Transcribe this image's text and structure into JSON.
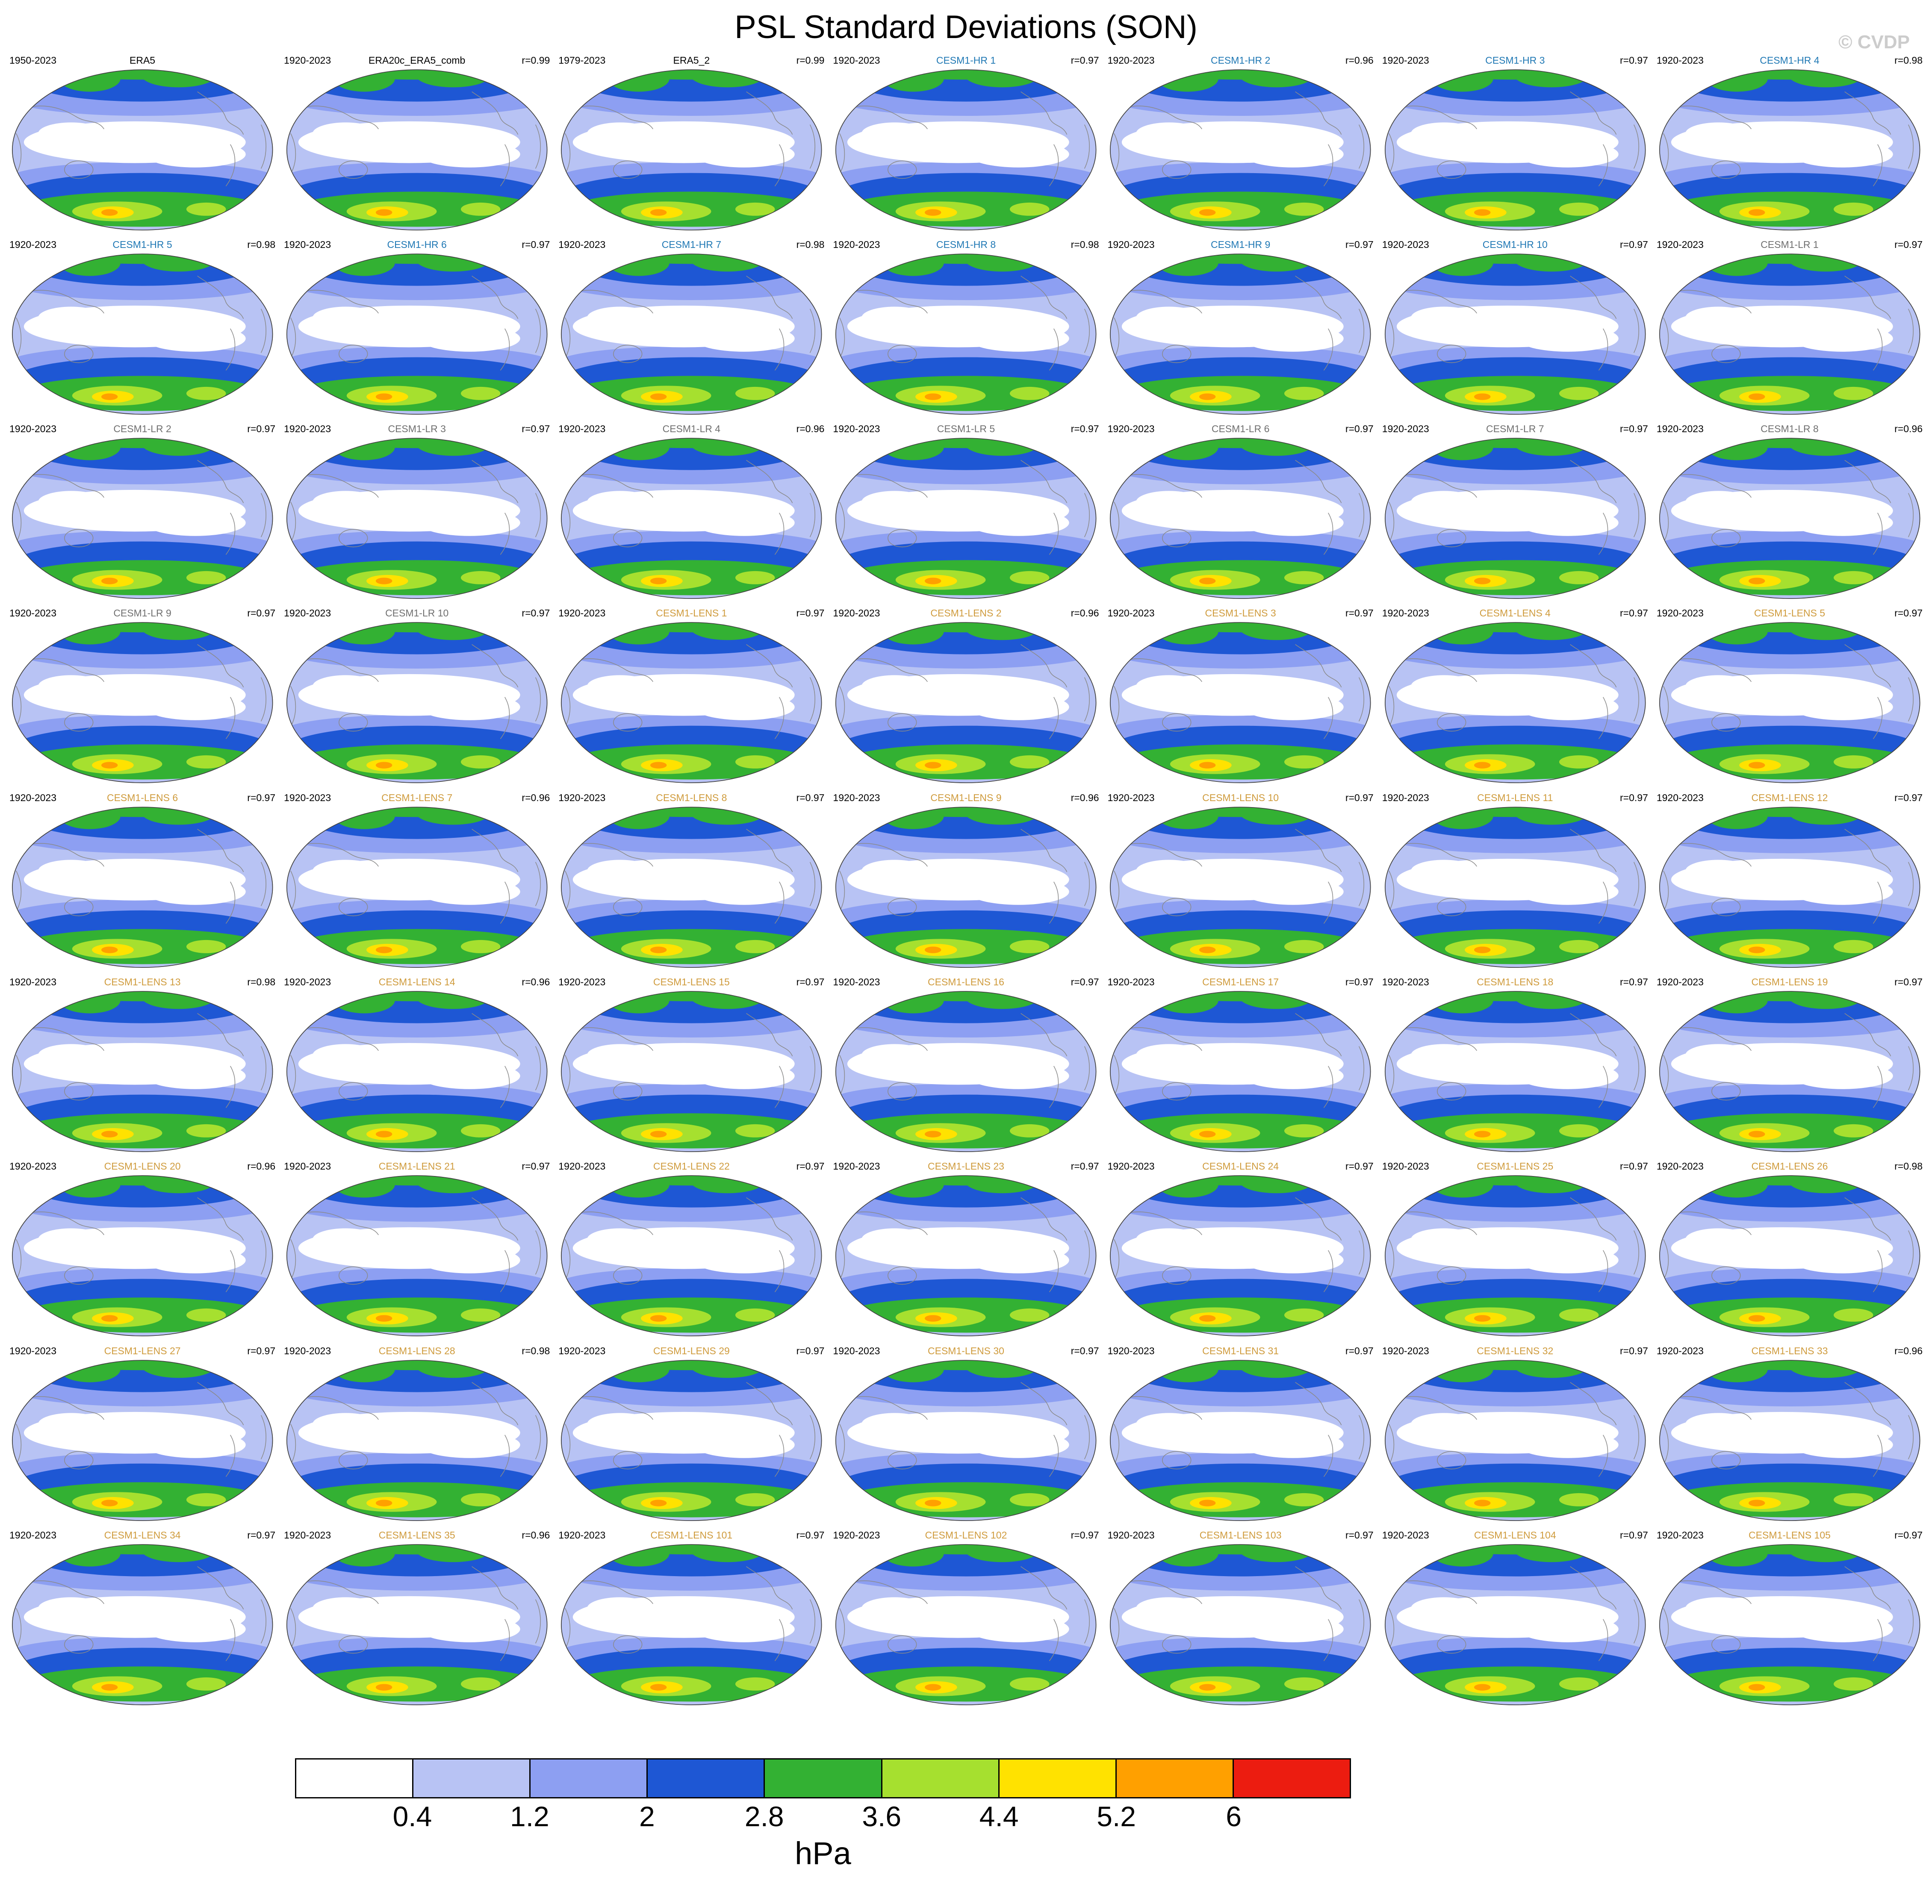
{
  "title": "PSL Standard Deviations (SON)",
  "watermark": "© CVDP",
  "colorbar": {
    "unit": "hPa",
    "levels": [
      "0.4",
      "1.2",
      "2",
      "2.8",
      "3.6",
      "4.4",
      "5.2",
      "6"
    ],
    "colors": [
      "#ffffff",
      "#b8c3f4",
      "#8d9ff2",
      "#1e57d4",
      "#33b133",
      "#a6e02f",
      "#ffe200",
      "#ffa000",
      "#ec1c10"
    ]
  },
  "group_colors": {
    "obs": "#000000",
    "hr": "#1f78b4",
    "lr": "#6f6f6f",
    "lens": "#cf9b3c"
  },
  "chart_data": {
    "type": "heatmap",
    "title": "PSL Standard Deviations (SON)",
    "subtitle": "Grid of global filled-contour maps of sea level pressure standard deviation for September-October-November",
    "unit": "hPa",
    "contour_levels": [
      0.4,
      1.2,
      2,
      2.8,
      3.6,
      4.4,
      5.2,
      6
    ],
    "legend_position": "bottom",
    "grid": {
      "rows": 9,
      "columns": 7
    },
    "panels": [
      {
        "name": "ERA5",
        "years": "1950-2023",
        "r": null,
        "group": "obs"
      },
      {
        "name": "ERA20c_ERA5_comb",
        "years": "1920-2023",
        "r": "0.99",
        "group": "obs"
      },
      {
        "name": "ERA5_2",
        "years": "1979-2023",
        "r": "0.99",
        "group": "obs"
      },
      {
        "name": "CESM1-HR 1",
        "years": "1920-2023",
        "r": "0.97",
        "group": "hr"
      },
      {
        "name": "CESM1-HR 2",
        "years": "1920-2023",
        "r": "0.96",
        "group": "hr"
      },
      {
        "name": "CESM1-HR 3",
        "years": "1920-2023",
        "r": "0.97",
        "group": "hr"
      },
      {
        "name": "CESM1-HR 4",
        "years": "1920-2023",
        "r": "0.98",
        "group": "hr"
      },
      {
        "name": "CESM1-HR 5",
        "years": "1920-2023",
        "r": "0.98",
        "group": "hr"
      },
      {
        "name": "CESM1-HR 6",
        "years": "1920-2023",
        "r": "0.97",
        "group": "hr"
      },
      {
        "name": "CESM1-HR 7",
        "years": "1920-2023",
        "r": "0.98",
        "group": "hr"
      },
      {
        "name": "CESM1-HR 8",
        "years": "1920-2023",
        "r": "0.98",
        "group": "hr"
      },
      {
        "name": "CESM1-HR 9",
        "years": "1920-2023",
        "r": "0.97",
        "group": "hr"
      },
      {
        "name": "CESM1-HR 10",
        "years": "1920-2023",
        "r": "0.97",
        "group": "hr"
      },
      {
        "name": "CESM1-LR 1",
        "years": "1920-2023",
        "r": "0.97",
        "group": "lr"
      },
      {
        "name": "CESM1-LR 2",
        "years": "1920-2023",
        "r": "0.97",
        "group": "lr"
      },
      {
        "name": "CESM1-LR 3",
        "years": "1920-2023",
        "r": "0.97",
        "group": "lr"
      },
      {
        "name": "CESM1-LR 4",
        "years": "1920-2023",
        "r": "0.96",
        "group": "lr"
      },
      {
        "name": "CESM1-LR 5",
        "years": "1920-2023",
        "r": "0.97",
        "group": "lr"
      },
      {
        "name": "CESM1-LR 6",
        "years": "1920-2023",
        "r": "0.97",
        "group": "lr"
      },
      {
        "name": "CESM1-LR 7",
        "years": "1920-2023",
        "r": "0.97",
        "group": "lr"
      },
      {
        "name": "CESM1-LR 8",
        "years": "1920-2023",
        "r": "0.96",
        "group": "lr"
      },
      {
        "name": "CESM1-LR 9",
        "years": "1920-2023",
        "r": "0.97",
        "group": "lr"
      },
      {
        "name": "CESM1-LR 10",
        "years": "1920-2023",
        "r": "0.97",
        "group": "lr"
      },
      {
        "name": "CESM1-LENS 1",
        "years": "1920-2023",
        "r": "0.97",
        "group": "lens"
      },
      {
        "name": "CESM1-LENS 2",
        "years": "1920-2023",
        "r": "0.96",
        "group": "lens"
      },
      {
        "name": "CESM1-LENS 3",
        "years": "1920-2023",
        "r": "0.97",
        "group": "lens"
      },
      {
        "name": "CESM1-LENS 4",
        "years": "1920-2023",
        "r": "0.97",
        "group": "lens"
      },
      {
        "name": "CESM1-LENS 5",
        "years": "1920-2023",
        "r": "0.97",
        "group": "lens"
      },
      {
        "name": "CESM1-LENS 6",
        "years": "1920-2023",
        "r": "0.97",
        "group": "lens"
      },
      {
        "name": "CESM1-LENS 7",
        "years": "1920-2023",
        "r": "0.96",
        "group": "lens"
      },
      {
        "name": "CESM1-LENS 8",
        "years": "1920-2023",
        "r": "0.97",
        "group": "lens"
      },
      {
        "name": "CESM1-LENS 9",
        "years": "1920-2023",
        "r": "0.96",
        "group": "lens"
      },
      {
        "name": "CESM1-LENS 10",
        "years": "1920-2023",
        "r": "0.97",
        "group": "lens"
      },
      {
        "name": "CESM1-LENS 11",
        "years": "1920-2023",
        "r": "0.97",
        "group": "lens"
      },
      {
        "name": "CESM1-LENS 12",
        "years": "1920-2023",
        "r": "0.97",
        "group": "lens"
      },
      {
        "name": "CESM1-LENS 13",
        "years": "1920-2023",
        "r": "0.98",
        "group": "lens"
      },
      {
        "name": "CESM1-LENS 14",
        "years": "1920-2023",
        "r": "0.96",
        "group": "lens"
      },
      {
        "name": "CESM1-LENS 15",
        "years": "1920-2023",
        "r": "0.97",
        "group": "lens"
      },
      {
        "name": "CESM1-LENS 16",
        "years": "1920-2023",
        "r": "0.97",
        "group": "lens"
      },
      {
        "name": "CESM1-LENS 17",
        "years": "1920-2023",
        "r": "0.97",
        "group": "lens"
      },
      {
        "name": "CESM1-LENS 18",
        "years": "1920-2023",
        "r": "0.97",
        "group": "lens"
      },
      {
        "name": "CESM1-LENS 19",
        "years": "1920-2023",
        "r": "0.97",
        "group": "lens"
      },
      {
        "name": "CESM1-LENS 20",
        "years": "1920-2023",
        "r": "0.96",
        "group": "lens"
      },
      {
        "name": "CESM1-LENS 21",
        "years": "1920-2023",
        "r": "0.97",
        "group": "lens"
      },
      {
        "name": "CESM1-LENS 22",
        "years": "1920-2023",
        "r": "0.97",
        "group": "lens"
      },
      {
        "name": "CESM1-LENS 23",
        "years": "1920-2023",
        "r": "0.97",
        "group": "lens"
      },
      {
        "name": "CESM1-LENS 24",
        "years": "1920-2023",
        "r": "0.97",
        "group": "lens"
      },
      {
        "name": "CESM1-LENS 25",
        "years": "1920-2023",
        "r": "0.97",
        "group": "lens"
      },
      {
        "name": "CESM1-LENS 26",
        "years": "1920-2023",
        "r": "0.98",
        "group": "lens"
      },
      {
        "name": "CESM1-LENS 27",
        "years": "1920-2023",
        "r": "0.97",
        "group": "lens"
      },
      {
        "name": "CESM1-LENS 28",
        "years": "1920-2023",
        "r": "0.98",
        "group": "lens"
      },
      {
        "name": "CESM1-LENS 29",
        "years": "1920-2023",
        "r": "0.97",
        "group": "lens"
      },
      {
        "name": "CESM1-LENS 30",
        "years": "1920-2023",
        "r": "0.97",
        "group": "lens"
      },
      {
        "name": "CESM1-LENS 31",
        "years": "1920-2023",
        "r": "0.97",
        "group": "lens"
      },
      {
        "name": "CESM1-LENS 32",
        "years": "1920-2023",
        "r": "0.97",
        "group": "lens"
      },
      {
        "name": "CESM1-LENS 33",
        "years": "1920-2023",
        "r": "0.96",
        "group": "lens"
      },
      {
        "name": "CESM1-LENS 34",
        "years": "1920-2023",
        "r": "0.97",
        "group": "lens"
      },
      {
        "name": "CESM1-LENS 35",
        "years": "1920-2023",
        "r": "0.96",
        "group": "lens"
      },
      {
        "name": "CESM1-LENS 101",
        "years": "1920-2023",
        "r": "0.97",
        "group": "lens"
      },
      {
        "name": "CESM1-LENS 102",
        "years": "1920-2023",
        "r": "0.97",
        "group": "lens"
      },
      {
        "name": "CESM1-LENS 103",
        "years": "1920-2023",
        "r": "0.97",
        "group": "lens"
      },
      {
        "name": "CESM1-LENS 104",
        "years": "1920-2023",
        "r": "0.97",
        "group": "lens"
      },
      {
        "name": "CESM1-LENS 105",
        "years": "1920-2023",
        "r": "0.97",
        "group": "lens"
      }
    ]
  }
}
